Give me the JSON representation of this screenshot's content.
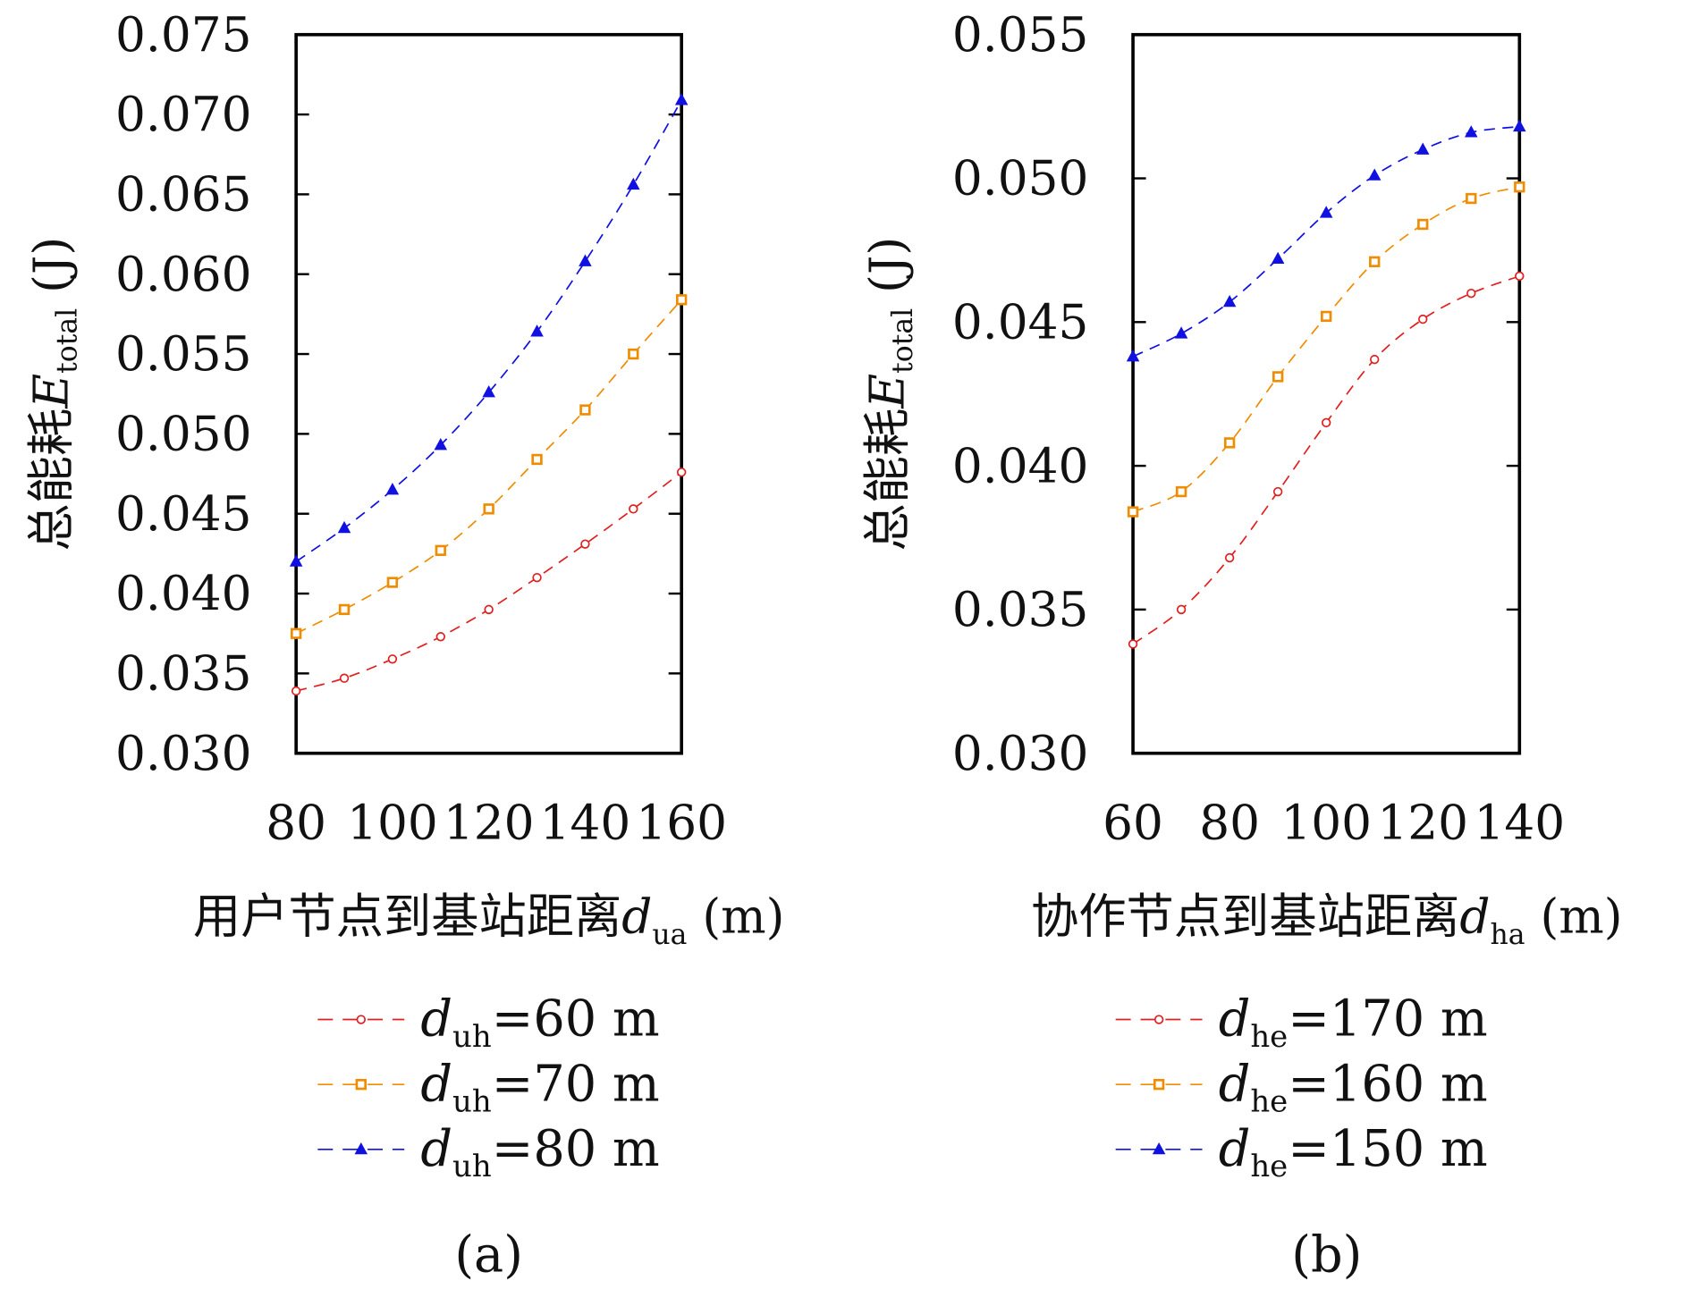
{
  "chart_data": [
    {
      "type": "line",
      "caption": "(a)",
      "ylabel": {
        "cn": "总能耗",
        "sym": "E",
        "sub": "total",
        "unit": "(J)"
      },
      "xlabel": {
        "cn": "用户节点到基站距离",
        "sym": "d",
        "sub": "ua",
        "unit": "(m)"
      },
      "xlim": [
        80,
        160
      ],
      "ylim": [
        0.03,
        0.075
      ],
      "xticks": [
        "80",
        "100",
        "120",
        "140",
        "160"
      ],
      "yticks": [
        "0.030",
        "0.035",
        "0.040",
        "0.045",
        "0.050",
        "0.055",
        "0.060",
        "0.065",
        "0.070",
        "0.075"
      ],
      "x": [
        80,
        90,
        100,
        110,
        120,
        130,
        140,
        150,
        160
      ],
      "legend_position": "below",
      "series": [
        {
          "name": {
            "sym": "d",
            "sub": "uh",
            "rest": "=60 m"
          },
          "color": "#e02020",
          "marker": "circle",
          "values": [
            0.0339,
            0.0347,
            0.0359,
            0.0373,
            0.039,
            0.041,
            0.0431,
            0.0453,
            0.0476
          ]
        },
        {
          "name": {
            "sym": "d",
            "sub": "uh",
            "rest": "=70 m"
          },
          "color": "#f08c00",
          "marker": "square",
          "values": [
            0.0375,
            0.039,
            0.0407,
            0.0427,
            0.0453,
            0.0484,
            0.0515,
            0.055,
            0.0584
          ]
        },
        {
          "name": {
            "sym": "d",
            "sub": "uh",
            "rest": "=80 m"
          },
          "color": "#1010e0",
          "marker": "triangle",
          "values": [
            0.042,
            0.0441,
            0.0465,
            0.0493,
            0.0526,
            0.0564,
            0.0608,
            0.0656,
            0.0709
          ]
        }
      ]
    },
    {
      "type": "line",
      "caption": "(b)",
      "ylabel": {
        "cn": "总能耗",
        "sym": "E",
        "sub": "total",
        "unit": "(J)"
      },
      "xlabel": {
        "cn": "协作节点到基站距离",
        "sym": "d",
        "sub": "ha",
        "unit": "(m)"
      },
      "xlim": [
        60,
        140
      ],
      "ylim": [
        0.03,
        0.055
      ],
      "xticks": [
        "60",
        "80",
        "100",
        "120",
        "140"
      ],
      "yticks": [
        "0.030",
        "0.035",
        "0.040",
        "0.045",
        "0.050",
        "0.055"
      ],
      "x": [
        60,
        70,
        80,
        90,
        100,
        110,
        120,
        130,
        140
      ],
      "legend_position": "below",
      "series": [
        {
          "name": {
            "sym": "d",
            "sub": "he",
            "rest": "=170 m"
          },
          "color": "#e02020",
          "marker": "circle",
          "values": [
            0.0338,
            0.035,
            0.0368,
            0.0391,
            0.0415,
            0.0437,
            0.0451,
            0.046,
            0.0466
          ]
        },
        {
          "name": {
            "sym": "d",
            "sub": "he",
            "rest": "=160 m"
          },
          "color": "#f08c00",
          "marker": "square",
          "values": [
            0.0384,
            0.0391,
            0.0408,
            0.0431,
            0.0452,
            0.0471,
            0.0484,
            0.0493,
            0.0497
          ]
        },
        {
          "name": {
            "sym": "d",
            "sub": "he",
            "rest": "=150 m"
          },
          "color": "#1010e0",
          "marker": "triangle",
          "values": [
            0.0438,
            0.0446,
            0.0457,
            0.0472,
            0.0488,
            0.0501,
            0.051,
            0.0516,
            0.0518
          ]
        }
      ]
    }
  ]
}
